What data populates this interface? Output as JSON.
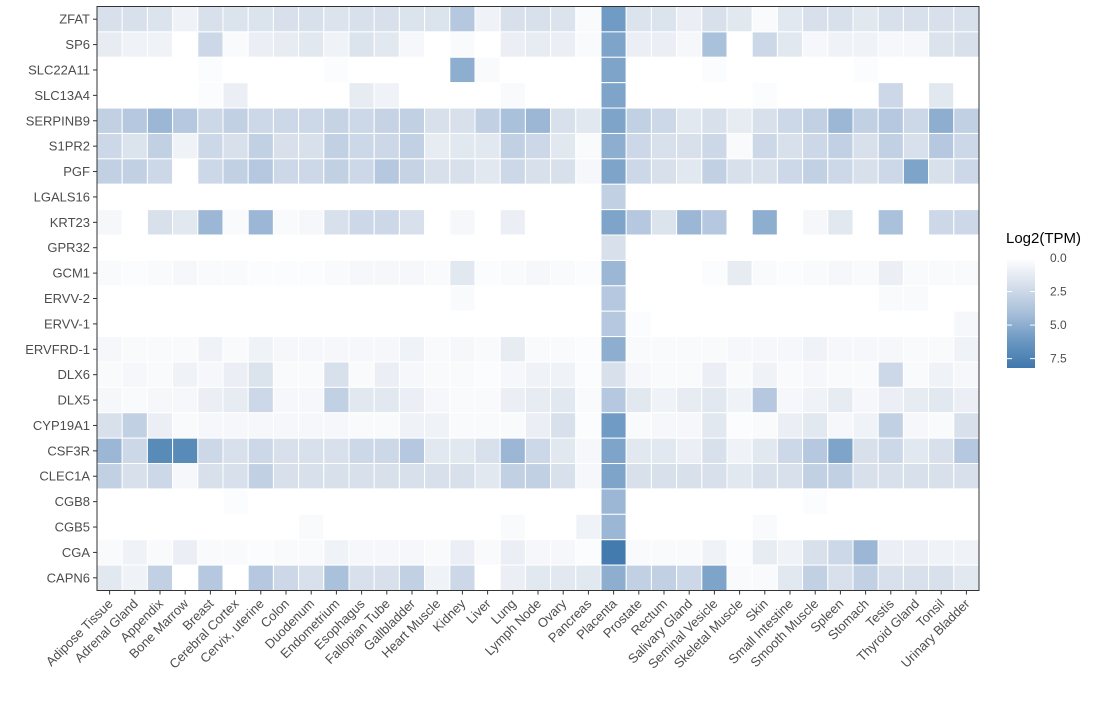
{
  "chart_data": {
    "type": "heatmap",
    "title": "",
    "xlabel": "",
    "ylabel": "",
    "x_categories": [
      "Adipose Tissue",
      "Adrenal Gland",
      "Appendix",
      "Bone Marrow",
      "Breast",
      "Cerebral Cortex",
      "Cervix, uterine",
      "Colon",
      "Duodenum",
      "Endometrium",
      "Esophagus",
      "Fallopian Tube",
      "Gallbladder",
      "Heart Muscle",
      "Kidney",
      "Liver",
      "Lung",
      "Lymph Node",
      "Ovary",
      "Pancreas",
      "Placenta",
      "Prostate",
      "Rectum",
      "Salivary Gland",
      "Seminal Vesicle",
      "Skeletal Muscle",
      "Skin",
      "Small Intestine",
      "Smooth Muscle",
      "Spleen",
      "Stomach",
      "Testis",
      "Thyroid Gland",
      "Tonsil",
      "Urinary Bladder"
    ],
    "y_categories": [
      "ZFAT",
      "SP6",
      "SLC22A11",
      "SLC13A4",
      "SERPINB9",
      "S1PR2",
      "PGF",
      "LGALS16",
      "KRT23",
      "GPR32",
      "GCM1",
      "ERVV-2",
      "ERVV-1",
      "ERVFRD-1",
      "DLX6",
      "DLX5",
      "CYP19A1",
      "CSF3R",
      "CLEC1A",
      "CGB8",
      "CGB5",
      "CGA",
      "CAPN6"
    ],
    "values": [
      [
        2.0,
        2.0,
        1.8,
        0.8,
        2.0,
        1.8,
        1.8,
        2.0,
        2.0,
        1.8,
        2.0,
        2.0,
        1.8,
        1.8,
        3.5,
        0.8,
        2.0,
        2.0,
        1.8,
        0.3,
        6.0,
        1.8,
        1.8,
        1.0,
        2.0,
        1.5,
        0.3,
        1.5,
        2.0,
        2.0,
        1.5,
        2.0,
        2.0,
        2.0,
        2.0
      ],
      [
        1.2,
        0.8,
        0.8,
        0.0,
        2.5,
        0.3,
        1.0,
        1.2,
        1.5,
        0.8,
        1.8,
        1.5,
        0.5,
        0.0,
        0.3,
        0.0,
        1.0,
        1.2,
        1.0,
        0.3,
        5.5,
        1.0,
        1.0,
        0.5,
        4.0,
        0.0,
        2.5,
        1.5,
        0.5,
        0.8,
        0.8,
        0.5,
        0.5,
        1.8,
        2.0
      ],
      [
        0,
        0,
        0,
        0,
        0.2,
        0,
        0,
        0,
        0,
        0.2,
        0,
        0,
        0,
        0,
        5.0,
        0.3,
        0,
        0,
        0,
        0,
        5.5,
        0,
        0,
        0,
        0.2,
        0,
        0,
        0,
        0,
        0,
        0.2,
        0,
        0,
        0,
        0
      ],
      [
        0,
        0,
        0,
        0,
        0.2,
        1.0,
        0,
        0,
        0,
        0,
        1.2,
        0.8,
        0,
        0,
        0,
        0,
        0.3,
        0,
        0,
        0,
        5.5,
        0,
        0,
        0,
        0,
        0,
        0.2,
        0,
        0,
        0,
        0,
        2.5,
        0,
        1.5,
        0
      ],
      [
        3.0,
        3.5,
        4.5,
        3.5,
        2.5,
        3.0,
        2.5,
        2.5,
        2.5,
        2.8,
        2.5,
        2.8,
        3.0,
        2.0,
        2.0,
        3.0,
        4.0,
        4.5,
        2.0,
        1.5,
        5.5,
        3.0,
        2.5,
        1.5,
        2.0,
        1.2,
        2.0,
        2.5,
        3.0,
        4.5,
        3.0,
        3.5,
        2.5,
        5.0,
        3.0
      ],
      [
        2.5,
        1.8,
        3.0,
        0.8,
        2.5,
        2.0,
        3.0,
        2.0,
        2.0,
        3.0,
        2.5,
        2.5,
        3.0,
        1.2,
        1.5,
        1.5,
        3.0,
        2.5,
        1.5,
        0.3,
        5.0,
        2.5,
        2.0,
        2.0,
        2.5,
        0.3,
        2.5,
        2.0,
        2.5,
        3.0,
        2.0,
        3.0,
        2.0,
        3.5,
        2.5
      ],
      [
        3.0,
        3.0,
        2.5,
        0.0,
        2.5,
        3.0,
        3.5,
        2.5,
        2.5,
        3.0,
        2.5,
        3.5,
        2.8,
        2.0,
        2.0,
        1.5,
        2.5,
        2.0,
        2.0,
        0.5,
        5.5,
        2.5,
        2.0,
        1.5,
        3.0,
        2.0,
        2.0,
        2.5,
        3.0,
        2.5,
        2.0,
        2.5,
        5.5,
        2.0,
        2.5
      ],
      [
        0,
        0,
        0,
        0,
        0,
        0,
        0,
        0,
        0,
        0,
        0,
        0,
        0,
        0,
        0,
        0,
        0,
        0,
        0,
        0,
        3.0,
        0,
        0,
        0,
        0,
        0,
        0,
        0,
        0,
        0,
        0,
        0,
        0,
        0,
        0
      ],
      [
        0.5,
        0,
        2.0,
        1.5,
        4.5,
        0.3,
        4.5,
        0.3,
        0.5,
        2.0,
        2.5,
        2.5,
        2.0,
        0,
        0.5,
        0,
        1.0,
        0,
        0,
        0,
        5.5,
        3.5,
        1.8,
        4.5,
        3.5,
        0,
        5.0,
        0,
        0.5,
        1.5,
        0,
        4.0,
        0,
        2.5,
        2.5
      ],
      [
        0,
        0,
        0,
        0,
        0,
        0,
        0,
        0,
        0,
        0,
        0,
        0,
        0,
        0,
        0,
        0,
        0,
        0,
        0,
        0,
        2.0,
        0,
        0,
        0,
        0,
        0,
        0,
        0,
        0,
        0,
        0,
        0,
        0,
        0,
        0
      ],
      [
        0.3,
        0.2,
        0.3,
        0.5,
        0.3,
        0.3,
        0.2,
        0.2,
        0.2,
        0.3,
        0.5,
        0.5,
        0.5,
        0.3,
        1.5,
        0.2,
        0.3,
        0.5,
        0.3,
        0.2,
        4.5,
        0,
        0,
        0,
        0.2,
        1.2,
        0.3,
        0.2,
        0.3,
        0.5,
        0.3,
        1.0,
        0.3,
        0.3,
        0.3
      ],
      [
        0,
        0,
        0,
        0,
        0,
        0,
        0,
        0,
        0,
        0,
        0,
        0,
        0,
        0,
        0.3,
        0,
        0,
        0,
        0,
        0,
        3.5,
        0,
        0,
        0,
        0,
        0,
        0,
        0,
        0,
        0,
        0,
        0.3,
        0.3,
        0,
        0
      ],
      [
        0,
        0,
        0,
        0,
        0,
        0,
        0,
        0,
        0,
        0,
        0,
        0,
        0,
        0,
        0,
        0,
        0,
        0,
        0,
        0,
        3.5,
        0.2,
        0,
        0,
        0,
        0,
        0,
        0,
        0,
        0,
        0,
        0,
        0,
        0,
        0.5
      ],
      [
        0.5,
        0.3,
        0.3,
        0.3,
        0.8,
        0.3,
        0.8,
        0.5,
        0.5,
        0.5,
        0.5,
        0.5,
        0.8,
        0.3,
        0.5,
        0.3,
        1.2,
        0.3,
        0.3,
        0.2,
        5.0,
        0.3,
        0.3,
        0.3,
        0.3,
        0.5,
        0.5,
        0.5,
        0.8,
        0.5,
        0.5,
        0.5,
        0.3,
        0.3,
        0.8
      ],
      [
        0.3,
        0.5,
        0.3,
        0.8,
        0.5,
        1.0,
        1.8,
        0.3,
        0.3,
        2.0,
        0.3,
        1.0,
        0.5,
        0.3,
        0.3,
        0.2,
        0.5,
        0.8,
        0.8,
        0.2,
        2.0,
        0.5,
        0.3,
        0.3,
        1.0,
        0.3,
        0.8,
        0.3,
        0.5,
        0.3,
        0.3,
        2.5,
        0.3,
        0.8,
        0.5
      ],
      [
        0.5,
        0.3,
        0.5,
        0.5,
        1.0,
        1.2,
        2.5,
        0.5,
        0.5,
        3.0,
        1.5,
        1.5,
        1.0,
        0.5,
        0.3,
        0.3,
        1.0,
        1.2,
        1.5,
        0.3,
        3.5,
        1.5,
        0.8,
        1.2,
        1.5,
        0.8,
        3.5,
        0.5,
        0.8,
        1.2,
        0.5,
        1.0,
        1.2,
        1.5,
        1.0
      ],
      [
        2.0,
        3.0,
        1.0,
        0.3,
        0.5,
        0.5,
        0.5,
        0.5,
        0.5,
        0.5,
        0.3,
        0.3,
        0.8,
        0.8,
        0.3,
        0.3,
        0.3,
        1.0,
        2.0,
        0.2,
        6.0,
        0.3,
        0.5,
        0.5,
        1.5,
        0.2,
        0.3,
        1.0,
        1.5,
        0.5,
        0.8,
        3.0,
        0.5,
        0.3,
        2.0
      ],
      [
        4.5,
        2.5,
        7.0,
        7.0,
        2.5,
        2.0,
        2.5,
        2.0,
        2.0,
        2.0,
        2.5,
        2.5,
        3.5,
        1.5,
        1.5,
        2.0,
        4.5,
        2.5,
        1.5,
        0.5,
        5.5,
        1.5,
        1.5,
        1.0,
        2.0,
        0.8,
        1.5,
        2.5,
        3.5,
        5.5,
        2.0,
        2.5,
        1.5,
        2.0,
        3.5
      ],
      [
        3.0,
        2.0,
        2.5,
        0.5,
        2.0,
        2.0,
        3.0,
        2.0,
        2.0,
        2.0,
        2.0,
        2.0,
        2.0,
        2.0,
        2.0,
        1.5,
        3.0,
        3.0,
        2.0,
        0.5,
        5.5,
        2.0,
        2.0,
        2.0,
        2.0,
        1.5,
        2.0,
        2.0,
        3.0,
        3.0,
        2.0,
        2.0,
        2.0,
        2.0,
        2.0
      ],
      [
        0,
        0,
        0,
        0,
        0,
        0.2,
        0,
        0,
        0,
        0,
        0,
        0,
        0,
        0,
        0,
        0,
        0,
        0,
        0,
        0,
        4.5,
        0,
        0,
        0,
        0,
        0,
        0,
        0,
        0.2,
        0,
        0,
        0,
        0,
        0,
        0
      ],
      [
        0,
        0,
        0,
        0,
        0,
        0,
        0,
        0,
        0.3,
        0,
        0,
        0,
        0,
        0,
        0,
        0,
        0.3,
        0,
        0,
        0.8,
        4.5,
        0,
        0,
        0,
        0,
        0,
        0.3,
        0,
        0,
        0,
        0,
        0,
        0,
        0,
        0
      ],
      [
        0.3,
        0.8,
        0.3,
        1.0,
        0.3,
        0.3,
        0.2,
        0.3,
        0.3,
        0.8,
        0.5,
        0.5,
        0.5,
        0.3,
        1.0,
        0.3,
        1.0,
        0.5,
        0.5,
        0.2,
        8.0,
        0.3,
        0.3,
        0.3,
        0.8,
        0.2,
        1.2,
        0.8,
        2.0,
        2.5,
        4.5,
        1.0,
        1.0,
        0.8,
        0.8
      ],
      [
        1.5,
        0.8,
        3.0,
        0.0,
        3.5,
        0.0,
        3.5,
        2.5,
        2.0,
        4.0,
        2.0,
        2.0,
        3.0,
        0.8,
        2.5,
        0.0,
        1.0,
        1.5,
        1.5,
        1.5,
        5.0,
        3.0,
        3.0,
        2.5,
        5.5,
        0.3,
        0.3,
        1.5,
        3.0,
        2.0,
        3.0,
        2.0,
        2.0,
        2.0,
        1.5
      ]
    ],
    "legend": {
      "title": "Log2(TPM)",
      "ticks": [
        "0.0",
        "2.5",
        "5.0",
        "7.5"
      ],
      "colors": [
        "#ffffff",
        "#d6dfeb",
        "#a8bfda",
        "#6b98c2",
        "#3f78ad"
      ],
      "position": "right"
    },
    "color_range": [
      0,
      8.2
    ],
    "grid": false
  }
}
